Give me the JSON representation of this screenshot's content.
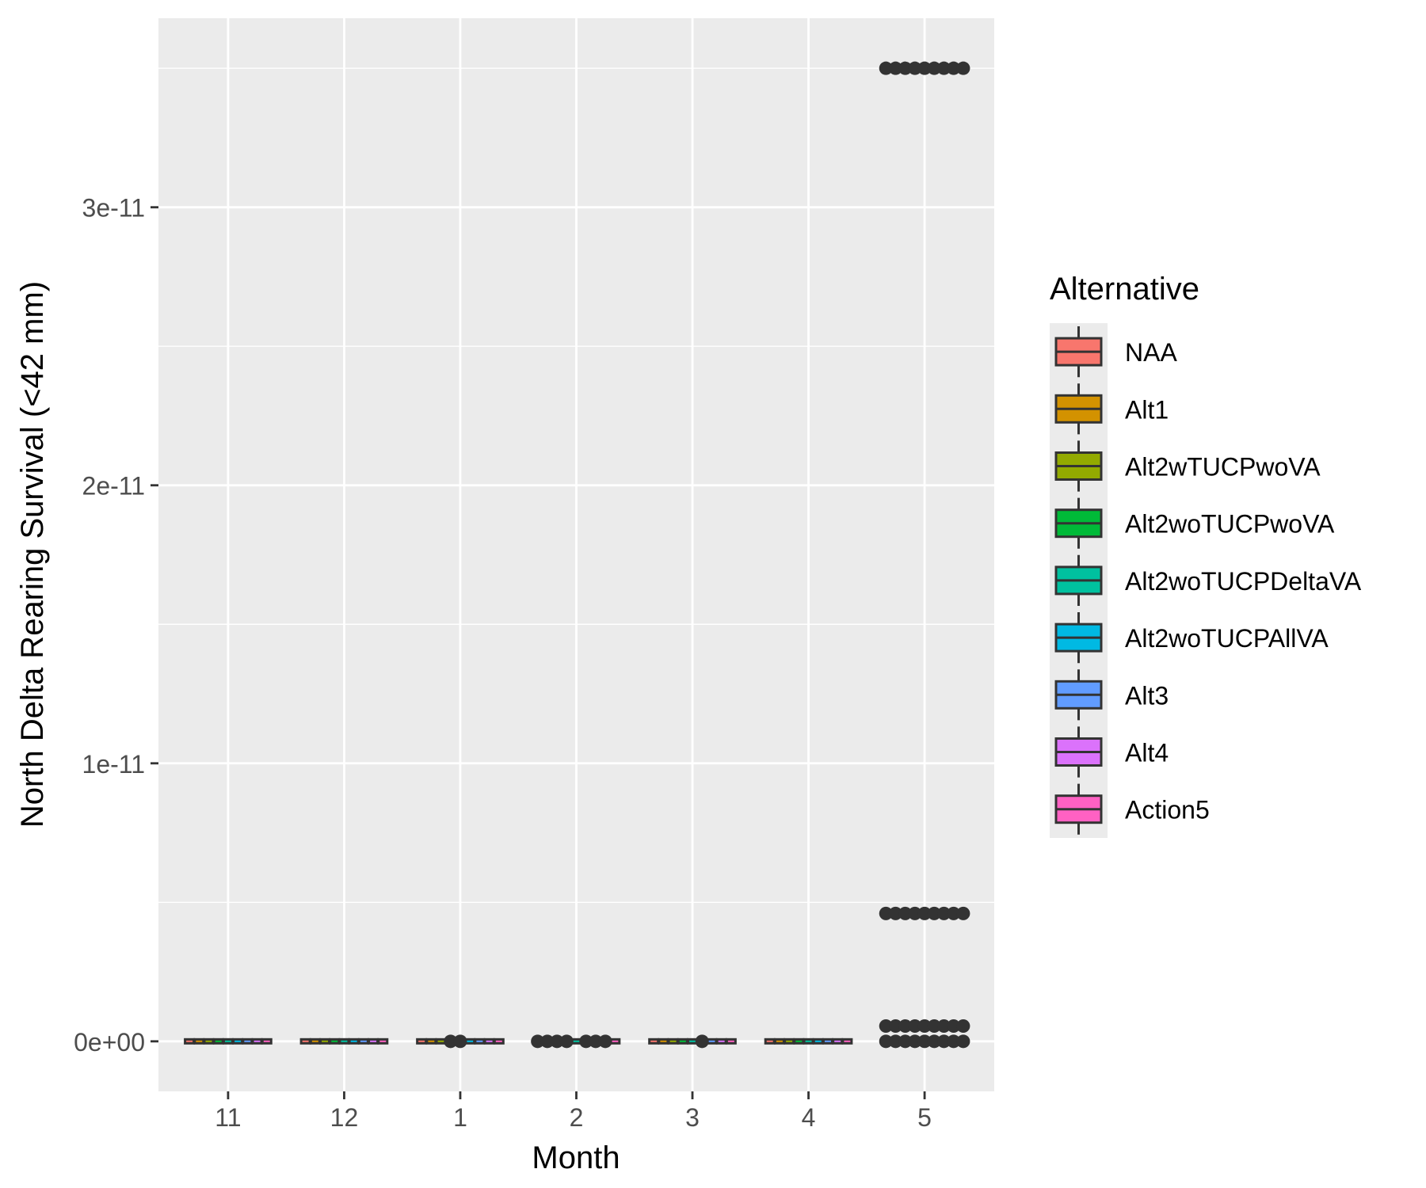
{
  "chart_data": {
    "type": "boxplot",
    "title": "",
    "xlabel": "Month",
    "ylabel": "North Delta Rearing Survival (<42 mm)",
    "categories": [
      "11",
      "12",
      "1",
      "2",
      "3",
      "4",
      "5"
    ],
    "y_ticks": [
      {
        "value": 0,
        "label": "0e+00"
      },
      {
        "value": 1e-11,
        "label": "1e-11"
      },
      {
        "value": 2e-11,
        "label": "2e-11"
      },
      {
        "value": 3e-11,
        "label": "3e-11"
      }
    ],
    "ylim": [
      -1.8e-12,
      3.68e-11
    ],
    "grid": true,
    "legend": {
      "title": "Alternative",
      "position": "right",
      "items": [
        {
          "name": "NAA",
          "color": "#F8766D"
        },
        {
          "name": "Alt1",
          "color": "#D39200"
        },
        {
          "name": "Alt2wTUCPwoVA",
          "color": "#93AA00"
        },
        {
          "name": "Alt2woTUCPwoVA",
          "color": "#00BA38"
        },
        {
          "name": "Alt2woTUCPDeltaVA",
          "color": "#00C19F"
        },
        {
          "name": "Alt2woTUCPAllVA",
          "color": "#00B9E3"
        },
        {
          "name": "Alt3",
          "color": "#619CFF"
        },
        {
          "name": "Alt4",
          "color": "#DB72FB"
        },
        {
          "name": "Action5",
          "color": "#FF61C3"
        }
      ]
    },
    "outliers": [
      {
        "category": "1",
        "alternative_index": 3,
        "value": 0
      },
      {
        "category": "1",
        "alternative_index": 4,
        "value": 0
      },
      {
        "category": "2",
        "alternative_index": 0,
        "value": 0
      },
      {
        "category": "2",
        "alternative_index": 1,
        "value": 0
      },
      {
        "category": "2",
        "alternative_index": 2,
        "value": 0
      },
      {
        "category": "2",
        "alternative_index": 3,
        "value": 0
      },
      {
        "category": "2",
        "alternative_index": 5,
        "value": 0
      },
      {
        "category": "2",
        "alternative_index": 6,
        "value": 0
      },
      {
        "category": "2",
        "alternative_index": 7,
        "value": 0
      },
      {
        "category": "3",
        "alternative_index": 5,
        "value": 0
      },
      {
        "category": "5",
        "alternative_index": 0,
        "value": 3.5e-11
      },
      {
        "category": "5",
        "alternative_index": 1,
        "value": 3.5e-11
      },
      {
        "category": "5",
        "alternative_index": 2,
        "value": 3.5e-11
      },
      {
        "category": "5",
        "alternative_index": 3,
        "value": 3.5e-11
      },
      {
        "category": "5",
        "alternative_index": 4,
        "value": 3.5e-11
      },
      {
        "category": "5",
        "alternative_index": 5,
        "value": 3.5e-11
      },
      {
        "category": "5",
        "alternative_index": 6,
        "value": 3.5e-11
      },
      {
        "category": "5",
        "alternative_index": 7,
        "value": 3.5e-11
      },
      {
        "category": "5",
        "alternative_index": 8,
        "value": 3.5e-11
      },
      {
        "category": "5",
        "alternative_index": 0,
        "value": 4.6e-12
      },
      {
        "category": "5",
        "alternative_index": 1,
        "value": 4.6e-12
      },
      {
        "category": "5",
        "alternative_index": 2,
        "value": 4.6e-12
      },
      {
        "category": "5",
        "alternative_index": 3,
        "value": 4.6e-12
      },
      {
        "category": "5",
        "alternative_index": 4,
        "value": 4.6e-12
      },
      {
        "category": "5",
        "alternative_index": 5,
        "value": 4.6e-12
      },
      {
        "category": "5",
        "alternative_index": 6,
        "value": 4.6e-12
      },
      {
        "category": "5",
        "alternative_index": 7,
        "value": 4.6e-12
      },
      {
        "category": "5",
        "alternative_index": 8,
        "value": 4.6e-12
      },
      {
        "category": "5",
        "alternative_index": 0,
        "value": 5.5e-13
      },
      {
        "category": "5",
        "alternative_index": 1,
        "value": 5.5e-13
      },
      {
        "category": "5",
        "alternative_index": 2,
        "value": 5.5e-13
      },
      {
        "category": "5",
        "alternative_index": 3,
        "value": 5.5e-13
      },
      {
        "category": "5",
        "alternative_index": 4,
        "value": 5.5e-13
      },
      {
        "category": "5",
        "alternative_index": 5,
        "value": 5.5e-13
      },
      {
        "category": "5",
        "alternative_index": 6,
        "value": 5.5e-13
      },
      {
        "category": "5",
        "alternative_index": 7,
        "value": 5.5e-13
      },
      {
        "category": "5",
        "alternative_index": 8,
        "value": 5.5e-13
      },
      {
        "category": "5",
        "alternative_index": 0,
        "value": 0
      },
      {
        "category": "5",
        "alternative_index": 1,
        "value": 0
      },
      {
        "category": "5",
        "alternative_index": 2,
        "value": 0
      },
      {
        "category": "5",
        "alternative_index": 3,
        "value": 0
      },
      {
        "category": "5",
        "alternative_index": 4,
        "value": 0
      },
      {
        "category": "5",
        "alternative_index": 5,
        "value": 0
      },
      {
        "category": "5",
        "alternative_index": 6,
        "value": 0
      },
      {
        "category": "5",
        "alternative_index": 7,
        "value": 0
      },
      {
        "category": "5",
        "alternative_index": 8,
        "value": 0
      }
    ],
    "box_summary": "all boxes collapsed at 0"
  },
  "colors": {
    "panel_bg": "#EBEBEB",
    "grid": "#FFFFFF",
    "point": "#333333",
    "text": "#000000",
    "tick_text": "#4D4D4D"
  }
}
